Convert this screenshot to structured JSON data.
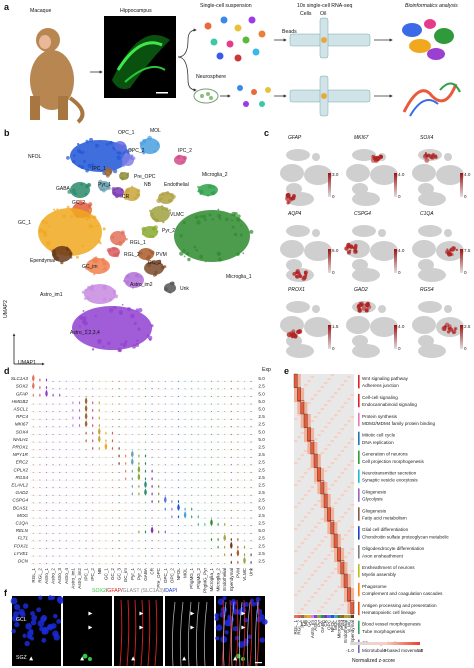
{
  "panel_a": {
    "letter": "a",
    "labels": {
      "macaque": "Macaque",
      "hippocampus": "Hippocampus",
      "suspension": "Single-cell suspension",
      "rnaseq": "10x single-cell RNA-seq",
      "cells": "Cells",
      "oil": "Oil",
      "beads": "Beads",
      "neurosphere": "Neurosphere",
      "bioinfo": "Bioinformatics analysis"
    }
  },
  "panel_b": {
    "letter": "b",
    "umap1": "UMAP1",
    "umap2": "UMAP2",
    "clusters": [
      {
        "name": "NFOL",
        "color": "#1f55d6"
      },
      {
        "name": "OPC_1",
        "color": "#5f6fe0"
      },
      {
        "name": "OPC_2",
        "color": "#7f7fe8"
      },
      {
        "name": "MOL",
        "color": "#4aa0e0"
      },
      {
        "name": "IPC_1",
        "color": "#9a6b3a"
      },
      {
        "name": "IPC_2",
        "color": "#d14d8a"
      },
      {
        "name": "Pre_OPC",
        "color": "#8c8c3c"
      },
      {
        "name": "Pyr_1",
        "color": "#6aa0b0"
      },
      {
        "name": "NB",
        "color": "#c9a43a"
      },
      {
        "name": "CR",
        "color": "#7a3ab0"
      },
      {
        "name": "GABA",
        "color": "#2a8a6a"
      },
      {
        "name": "Endothelial",
        "color": "#b0a040"
      },
      {
        "name": "Microglia_2",
        "color": "#2ea04a"
      },
      {
        "name": "GC_2",
        "color": "#e05a3a"
      },
      {
        "name": "VLMC",
        "color": "#a0a040"
      },
      {
        "name": "GC_1",
        "color": "#f0a81e"
      },
      {
        "name": "Pyr_2",
        "color": "#88aa30"
      },
      {
        "name": "RGL_1",
        "color": "#e2725a"
      },
      {
        "name": "PVM",
        "color": "#aa5a2a"
      },
      {
        "name": "Microglia_1",
        "color": "#2e8b2e"
      },
      {
        "name": "Ependymal",
        "color": "#6a3a1a"
      },
      {
        "name": "RGL_2",
        "color": "#d85a60"
      },
      {
        "name": "GC_3",
        "color": "#7a4a2a"
      },
      {
        "name": "GC_im",
        "color": "#f08050"
      },
      {
        "name": "Astro_im2",
        "color": "#b070d8"
      },
      {
        "name": "Unk",
        "color": "#555555"
      },
      {
        "name": "Astro_im1",
        "color": "#c88ae0"
      },
      {
        "name": "Astro_1,2,3,4",
        "color": "#9040d0"
      }
    ]
  },
  "panel_c": {
    "letter": "c",
    "genes": [
      {
        "name": "GFAP",
        "max": "3.0",
        "min": "0"
      },
      {
        "name": "MKI67",
        "max": "4.0",
        "min": "0"
      },
      {
        "name": "SOX4",
        "max": "4.0",
        "min": "0"
      },
      {
        "name": "AQP4",
        "max": "6.0",
        "min": "0"
      },
      {
        "name": "CSPG4",
        "max": "4.0",
        "min": "0"
      },
      {
        "name": "C1QA",
        "max": "7.5",
        "min": "0"
      },
      {
        "name": "PROX1",
        "max": "1.5",
        "min": "0"
      },
      {
        "name": "GAD2",
        "max": "4.0",
        "min": "0"
      },
      {
        "name": "RGS4",
        "max": "2.5",
        "min": "0"
      }
    ]
  },
  "panel_d": {
    "letter": "d",
    "exp_label": "Exp",
    "genes": [
      "SLC1A3",
      "SOX2",
      "GFAP",
      "HMGB2",
      "ASCL1",
      "RFC4",
      "MKI67",
      "SOX4",
      "NHLH1",
      "PROX1",
      "NPY1R",
      "ERC2",
      "CPLX2",
      "RGS4",
      "ELAVL2",
      "GAD2",
      "CSPG4",
      "BCAS1",
      "MOG",
      "C1QA",
      "RELN",
      "FLT1",
      "FOXJ1",
      "LYVE1",
      "DCN"
    ],
    "scale_values": [
      "5.0",
      "2.5",
      "5.0",
      "5.0",
      "5.0",
      "2.5",
      "2.5",
      "5.0",
      "5.0",
      "2.5",
      "2.5",
      "2.5",
      "2.5",
      "2.5",
      "2.5",
      "2.5",
      "2.5",
      "5.0",
      "2.5",
      "2.5",
      "5.0",
      "2.5",
      "2.5",
      "2.5",
      "2.5"
    ],
    "cell_types": [
      "RGL_1",
      "RGL_2",
      "Astro_1",
      "Astro_2",
      "Astro_3",
      "Astro_4",
      "Astro_im1",
      "Astro_im2",
      "IPC_1",
      "IPC_2",
      "NB",
      "GC_1",
      "GC_2",
      "GC_3",
      "GC_im",
      "Pyr_1",
      "Pyr_2",
      "GABA",
      "CR",
      "Pre_OPC",
      "OPC_1",
      "OPC_2",
      "NFOL",
      "MOL",
      "PhgMG_1",
      "PhgMG_2",
      "PhgMG_Pyr",
      "Microglia_1",
      "Microglia_2",
      "Endothelial",
      "Ependymal",
      "PVM",
      "VLMC",
      "Unk"
    ]
  },
  "panel_e": {
    "letter": "e",
    "terms": [
      {
        "text": "Wnt signaling pathway",
        "color": "#d62728"
      },
      {
        "text": "Adherens junction",
        "color": "#d62728"
      },
      {
        "text": "Cell-cell signaling",
        "color": "#d62728"
      },
      {
        "text": "Endocannabinoid signaling",
        "color": "#d62728"
      },
      {
        "text": "Protein synthesis",
        "color": "#e377c2"
      },
      {
        "text": "MDM2/MDM4 family protein binding",
        "color": "#e377c2"
      },
      {
        "text": "Mitotic cell cycle",
        "color": "#1f77b4"
      },
      {
        "text": "DNA replication",
        "color": "#1f77b4"
      },
      {
        "text": "Generation of neurons",
        "color": "#2ca02c"
      },
      {
        "text": "Cell projection morphogenesis",
        "color": "#2ca02c"
      },
      {
        "text": "Neurotransmitter secretion",
        "color": "#17becf"
      },
      {
        "text": "Synaptic vesicle exocytosis",
        "color": "#17becf"
      },
      {
        "text": "Gliogenesis",
        "color": "#9467bd"
      },
      {
        "text": "Glycolysis",
        "color": "#9467bd"
      },
      {
        "text": "Gliogenesis",
        "color": "#8c564b"
      },
      {
        "text": "Fatty acid metabolism",
        "color": "#8c564b"
      },
      {
        "text": "Glial cell differentiation",
        "color": "#1f3fbf"
      },
      {
        "text": "Chondroitin sulfate proteoglycan metabolic",
        "color": "#1f3fbf"
      },
      {
        "text": "Oligodendrocyte differentiation",
        "color": "#7f7f7f"
      },
      {
        "text": "Axon ensheathment",
        "color": "#7f7f7f"
      },
      {
        "text": "Ensheathment of neurons",
        "color": "#bcbd22"
      },
      {
        "text": "Myelin assembly",
        "color": "#bcbd22"
      },
      {
        "text": "Phagosome",
        "color": "#ff7f0e"
      },
      {
        "text": "Complement and coagulation cascades",
        "color": "#ff7f0e"
      },
      {
        "text": "Antigen processing and presentation",
        "color": "#e6550d"
      },
      {
        "text": "Hematopoietic cell lineage",
        "color": "#e6550d"
      },
      {
        "text": "Blood vessel morphogenesis",
        "color": "#31a354"
      },
      {
        "text": "Tube morphogenesis",
        "color": "#31a354"
      },
      {
        "text": "Cilium organization",
        "color": "#756bb1"
      },
      {
        "text": "Microtubule-based movement",
        "color": "#756bb1"
      }
    ],
    "legend_title": "Normalized z-score",
    "legend_ticks": [
      "-1.0",
      "0",
      "1.0"
    ],
    "columns": [
      "RGL_1",
      "RGL_2",
      "IPC",
      "NB",
      "GC",
      "Astro_im",
      "Astro",
      "Pyr",
      "GABA",
      "CR",
      "OPC",
      "NFOL",
      "MOL",
      "Microglia",
      "PVM",
      "Endothelial",
      "VLMC",
      "Ependymal"
    ]
  },
  "panel_f": {
    "letter": "f",
    "title_parts": [
      {
        "text": "SOX2",
        "color": "#2ecc40"
      },
      {
        "text": "/",
        "color": "#222222"
      },
      {
        "text": "GFAP",
        "color": "#e02020"
      },
      {
        "text": "/",
        "color": "#222222"
      },
      {
        "text": "GLAST (SLC1A3)",
        "color": "#888888"
      },
      {
        "text": "/",
        "color": "#222222"
      },
      {
        "text": "DAPI",
        "color": "#2040e0"
      }
    ],
    "gcl": "GCL",
    "sgz": "SGZ"
  }
}
